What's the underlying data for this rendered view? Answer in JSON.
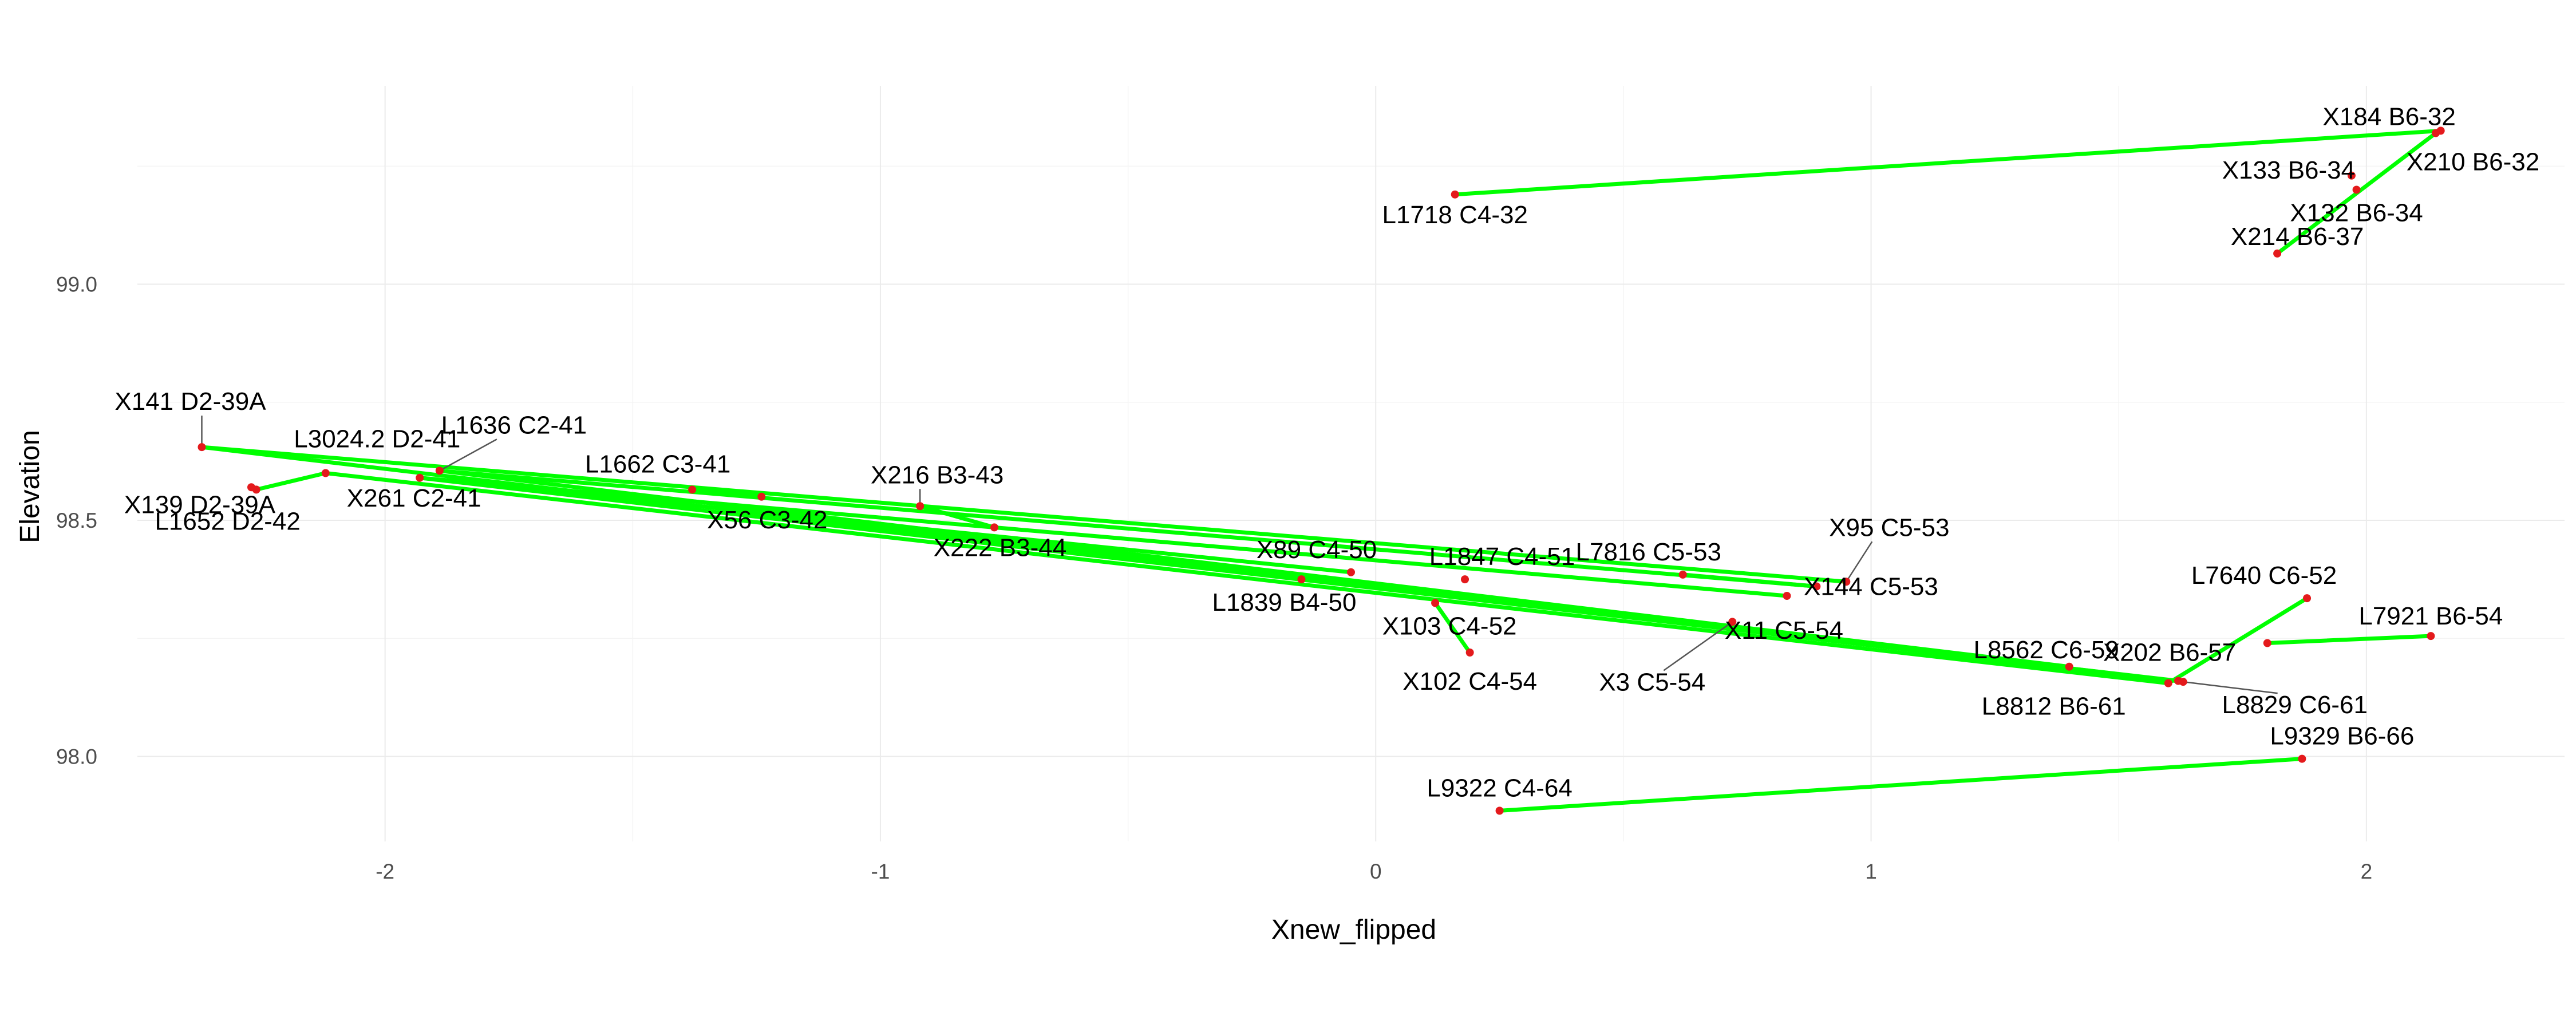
{
  "chart_data": {
    "type": "scatter",
    "xlabel": "Xnew_flipped",
    "ylabel": "Elevation",
    "xlim": [
      -2.5,
      2.4
    ],
    "ylim": [
      97.82,
      99.42
    ],
    "x_ticks": [
      -2,
      -1,
      0,
      1,
      2
    ],
    "x_tick_labels": [
      "-2",
      "-1",
      "0",
      "1",
      "2"
    ],
    "y_ticks": [
      98.0,
      98.5,
      99.0
    ],
    "y_tick_labels": [
      "98.0",
      "98.5",
      "99.0"
    ],
    "grid": true,
    "colors": {
      "segment": "#00ff00",
      "point": "#e41a1c",
      "leader": "#555555",
      "grid": "#ebebeb"
    },
    "points": [
      {
        "id": "X141",
        "label": "X141 D2-39A",
        "x": -2.37,
        "y": 98.655
      },
      {
        "id": "X139",
        "label": "X139 D2-39A",
        "x": -2.27,
        "y": 98.57
      },
      {
        "id": "L1652",
        "label": "L1652 D2-42",
        "x": -2.26,
        "y": 98.565
      },
      {
        "id": "L3024",
        "label": "L3024.2 D2-41",
        "x": -2.12,
        "y": 98.6
      },
      {
        "id": "L1636",
        "label": "L1636 C2-41",
        "x": -1.89,
        "y": 98.605
      },
      {
        "id": "X261",
        "label": "X261 C2-41",
        "x": -1.93,
        "y": 98.59
      },
      {
        "id": "L1662",
        "label": "L1662 C3-41",
        "x": -1.38,
        "y": 98.565
      },
      {
        "id": "X56",
        "label": "X56 C3-42",
        "x": -1.24,
        "y": 98.55
      },
      {
        "id": "X216",
        "label": "X216 B3-43",
        "x": -0.92,
        "y": 98.53
      },
      {
        "id": "X222",
        "label": "X222 B3-44",
        "x": -0.77,
        "y": 98.485
      },
      {
        "id": "X89",
        "label": "X89 C4-50",
        "x": -0.05,
        "y": 98.39
      },
      {
        "id": "L1839",
        "label": "L1839 B4-50",
        "x": -0.15,
        "y": 98.375
      },
      {
        "id": "L1847",
        "label": "L1847 C4-51",
        "x": 0.18,
        "y": 98.375
      },
      {
        "id": "X103",
        "label": "X103 C4-52",
        "x": 0.12,
        "y": 98.325
      },
      {
        "id": "X102",
        "label": "X102 C4-54",
        "x": 0.19,
        "y": 98.22
      },
      {
        "id": "L7816",
        "label": "L7816 C5-53",
        "x": 0.62,
        "y": 98.385
      },
      {
        "id": "X144",
        "label": "X144 C5-53",
        "x": 0.89,
        "y": 98.36
      },
      {
        "id": "X95",
        "label": "X95 C5-53",
        "x": 0.95,
        "y": 98.37
      },
      {
        "id": "X11",
        "label": "X11 C5-54",
        "x": 0.83,
        "y": 98.34
      },
      {
        "id": "X3",
        "label": "X3 C5-54",
        "x": 0.72,
        "y": 98.285
      },
      {
        "id": "L8562",
        "label": "L8562 C6-59",
        "x": 1.4,
        "y": 98.19
      },
      {
        "id": "X202",
        "label": "X202 B6-57",
        "x": 1.62,
        "y": 98.16
      },
      {
        "id": "L8812",
        "label": "L8812 B6-61",
        "x": 1.6,
        "y": 98.155
      },
      {
        "id": "L8829",
        "label": "L8829 C6-61",
        "x": 1.63,
        "y": 98.158
      },
      {
        "id": "L7640",
        "label": "L7640 C6-52",
        "x": 1.88,
        "y": 98.335
      },
      {
        "id": "L7921",
        "label": "L7921 B6-54",
        "x": 2.13,
        "y": 98.255
      },
      {
        "id": "L7921b",
        "label": "",
        "x": 1.8,
        "y": 98.24
      },
      {
        "id": "L9329",
        "label": "L9329 B6-66",
        "x": 1.87,
        "y": 97.995
      },
      {
        "id": "L9322",
        "label": "L9322 C4-64",
        "x": 0.25,
        "y": 97.885
      },
      {
        "id": "L1718",
        "label": "L1718 C4-32",
        "x": 0.16,
        "y": 99.19
      },
      {
        "id": "X184",
        "label": "X184 B6-32",
        "x": 2.15,
        "y": 99.325
      },
      {
        "id": "X133",
        "label": "X133 B6-34",
        "x": 1.97,
        "y": 99.23
      },
      {
        "id": "X210",
        "label": "X210 B6-32",
        "x": 2.14,
        "y": 99.32
      },
      {
        "id": "X132",
        "label": "X132 B6-34",
        "x": 1.98,
        "y": 99.2
      },
      {
        "id": "X214",
        "label": "X214 B6-37",
        "x": 1.82,
        "y": 99.065
      }
    ],
    "segments": [
      [
        "X141",
        "L8829"
      ],
      [
        "L3024",
        "L8812"
      ],
      [
        "X261",
        "X202"
      ],
      [
        "L1636",
        "L8562"
      ],
      [
        "X261",
        "X11"
      ],
      [
        "L1636",
        "X144"
      ],
      [
        "X261",
        "X89"
      ],
      [
        "X141",
        "X95"
      ],
      [
        "L1652",
        "L3024"
      ],
      [
        "L1662",
        "X56"
      ],
      [
        "X216",
        "X222"
      ],
      [
        "L7816",
        "X144"
      ],
      [
        "X103",
        "X102"
      ],
      [
        "L8812",
        "L7640"
      ],
      [
        "L7921b",
        "L7921"
      ],
      [
        "L9322",
        "L9329"
      ],
      [
        "L1718",
        "X184"
      ],
      [
        "X214",
        "X210"
      ]
    ]
  }
}
